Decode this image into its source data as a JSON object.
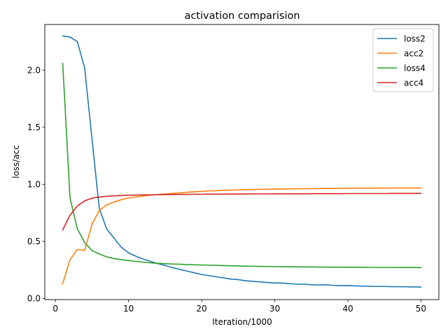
{
  "chart_data": {
    "type": "line",
    "title": "activation comparision",
    "xlabel": "Iteration/1000",
    "ylabel": "loss/acc",
    "xlim": [
      -1.45,
      52.45
    ],
    "ylim": [
      -0.01,
      2.4
    ],
    "xticks": [
      0,
      10,
      20,
      30,
      40,
      50
    ],
    "xtick_labels": [
      "0",
      "10",
      "20",
      "30",
      "40",
      "50"
    ],
    "yticks": [
      0.0,
      0.5,
      1.0,
      1.5,
      2.0
    ],
    "ytick_labels": [
      "0.0",
      "0.5",
      "1.0",
      "1.5",
      "2.0"
    ],
    "grid": false,
    "legend_position": "top-right",
    "x": [
      1,
      2,
      3,
      4,
      5,
      6,
      7,
      8,
      9,
      10,
      11,
      12,
      13,
      14,
      15,
      16,
      17,
      18,
      19,
      20,
      21,
      22,
      23,
      24,
      25,
      26,
      27,
      28,
      29,
      30,
      31,
      32,
      33,
      34,
      35,
      36,
      37,
      38,
      39,
      40,
      41,
      42,
      43,
      44,
      45,
      46,
      47,
      48,
      49,
      50
    ],
    "series": [
      {
        "name": "loss2",
        "color": "#1f77b4",
        "values": [
          2.3,
          2.29,
          2.25,
          2.02,
          1.4,
          0.79,
          0.61,
          0.53,
          0.45,
          0.4,
          0.37,
          0.345,
          0.325,
          0.305,
          0.29,
          0.27,
          0.255,
          0.24,
          0.225,
          0.21,
          0.2,
          0.19,
          0.18,
          0.17,
          0.165,
          0.155,
          0.15,
          0.145,
          0.14,
          0.135,
          0.135,
          0.13,
          0.125,
          0.125,
          0.12,
          0.118,
          0.12,
          0.115,
          0.112,
          0.113,
          0.11,
          0.108,
          0.107,
          0.105,
          0.105,
          0.103,
          0.103,
          0.102,
          0.101,
          0.1
        ]
      },
      {
        "name": "acc2",
        "color": "#ff7f0e",
        "values": [
          0.13,
          0.34,
          0.43,
          0.42,
          0.65,
          0.77,
          0.82,
          0.845,
          0.865,
          0.88,
          0.89,
          0.898,
          0.905,
          0.91,
          0.915,
          0.92,
          0.925,
          0.93,
          0.935,
          0.938,
          0.942,
          0.944,
          0.947,
          0.949,
          0.951,
          0.953,
          0.955,
          0.956,
          0.957,
          0.958,
          0.959,
          0.96,
          0.961,
          0.962,
          0.962,
          0.963,
          0.964,
          0.964,
          0.965,
          0.965,
          0.966,
          0.966,
          0.966,
          0.967,
          0.967,
          0.967,
          0.968,
          0.968,
          0.968,
          0.968
        ]
      },
      {
        "name": "loss4",
        "color": "#2ca02c",
        "values": [
          2.06,
          0.88,
          0.61,
          0.49,
          0.42,
          0.39,
          0.365,
          0.35,
          0.34,
          0.332,
          0.325,
          0.318,
          0.312,
          0.308,
          0.305,
          0.302,
          0.3,
          0.297,
          0.295,
          0.293,
          0.292,
          0.29,
          0.288,
          0.286,
          0.285,
          0.283,
          0.282,
          0.281,
          0.28,
          0.279,
          0.278,
          0.277,
          0.277,
          0.276,
          0.276,
          0.275,
          0.275,
          0.274,
          0.274,
          0.273,
          0.273,
          0.273,
          0.272,
          0.272,
          0.272,
          0.272,
          0.271,
          0.271,
          0.271,
          0.27
        ]
      },
      {
        "name": "acc4",
        "color": "#d62728",
        "values": [
          0.6,
          0.73,
          0.81,
          0.855,
          0.878,
          0.889,
          0.895,
          0.899,
          0.902,
          0.904,
          0.906,
          0.907,
          0.908,
          0.909,
          0.91,
          0.911,
          0.912,
          0.912,
          0.913,
          0.913,
          0.914,
          0.914,
          0.914,
          0.915,
          0.915,
          0.915,
          0.916,
          0.916,
          0.916,
          0.917,
          0.917,
          0.917,
          0.917,
          0.917,
          0.918,
          0.918,
          0.918,
          0.918,
          0.918,
          0.919,
          0.919,
          0.919,
          0.919,
          0.919,
          0.919,
          0.92,
          0.92,
          0.92,
          0.92,
          0.92
        ]
      }
    ]
  }
}
